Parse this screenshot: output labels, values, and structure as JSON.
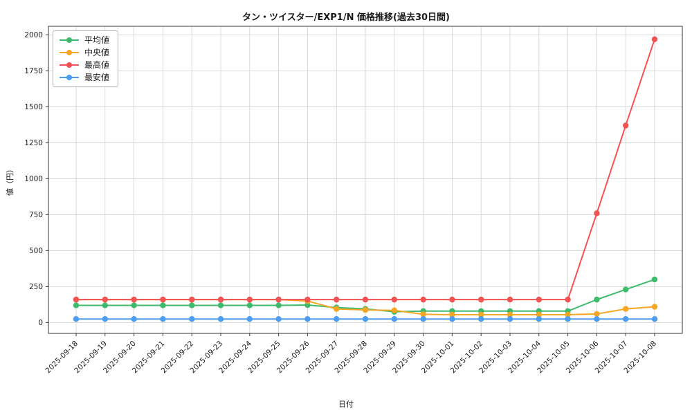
{
  "chart_data": {
    "type": "line",
    "title": "タン・ツイスター/EXP1/N 価格推移(過去30日間)",
    "xlabel": "日付",
    "ylabel": "値（円）",
    "x": [
      "2025-09-18",
      "2025-09-19",
      "2025-09-20",
      "2025-09-21",
      "2025-09-22",
      "2025-09-23",
      "2025-09-24",
      "2025-09-25",
      "2025-09-26",
      "2025-09-27",
      "2025-09-28",
      "2025-09-29",
      "2025-09-30",
      "2025-10-01",
      "2025-10-02",
      "2025-10-03",
      "2025-10-04",
      "2025-10-05",
      "2025-10-06",
      "2025-10-07",
      "2025-10-08"
    ],
    "series": [
      {
        "name": "平均値",
        "color": "#3dbb6b",
        "values": [
          120,
          120,
          120,
          120,
          120,
          120,
          120,
          120,
          122,
          105,
          95,
          75,
          80,
          80,
          80,
          80,
          80,
          80,
          160,
          230,
          300
        ]
      },
      {
        "name": "中央値",
        "color": "#f5a623",
        "values": [
          160,
          160,
          160,
          160,
          160,
          160,
          160,
          160,
          150,
          95,
          88,
          85,
          58,
          55,
          55,
          55,
          55,
          55,
          60,
          95,
          110
        ]
      },
      {
        "name": "最高値",
        "color": "#f25252",
        "values": [
          160,
          160,
          160,
          160,
          160,
          160,
          160,
          160,
          160,
          160,
          160,
          160,
          160,
          160,
          160,
          160,
          160,
          160,
          760,
          1370,
          1970
        ]
      },
      {
        "name": "最安値",
        "color": "#4a9df0",
        "values": [
          25,
          25,
          25,
          25,
          25,
          25,
          25,
          25,
          25,
          25,
          25,
          25,
          25,
          25,
          25,
          25,
          25,
          25,
          25,
          25,
          25
        ]
      }
    ],
    "yticks": [
      0,
      250,
      500,
      750,
      1000,
      1250,
      1500,
      1750,
      2000
    ],
    "ylim": [
      -75,
      2060
    ],
    "grid": true,
    "legend_position": "upper left",
    "grid_color": "#cfcfcf",
    "axis_color": "#333333"
  }
}
